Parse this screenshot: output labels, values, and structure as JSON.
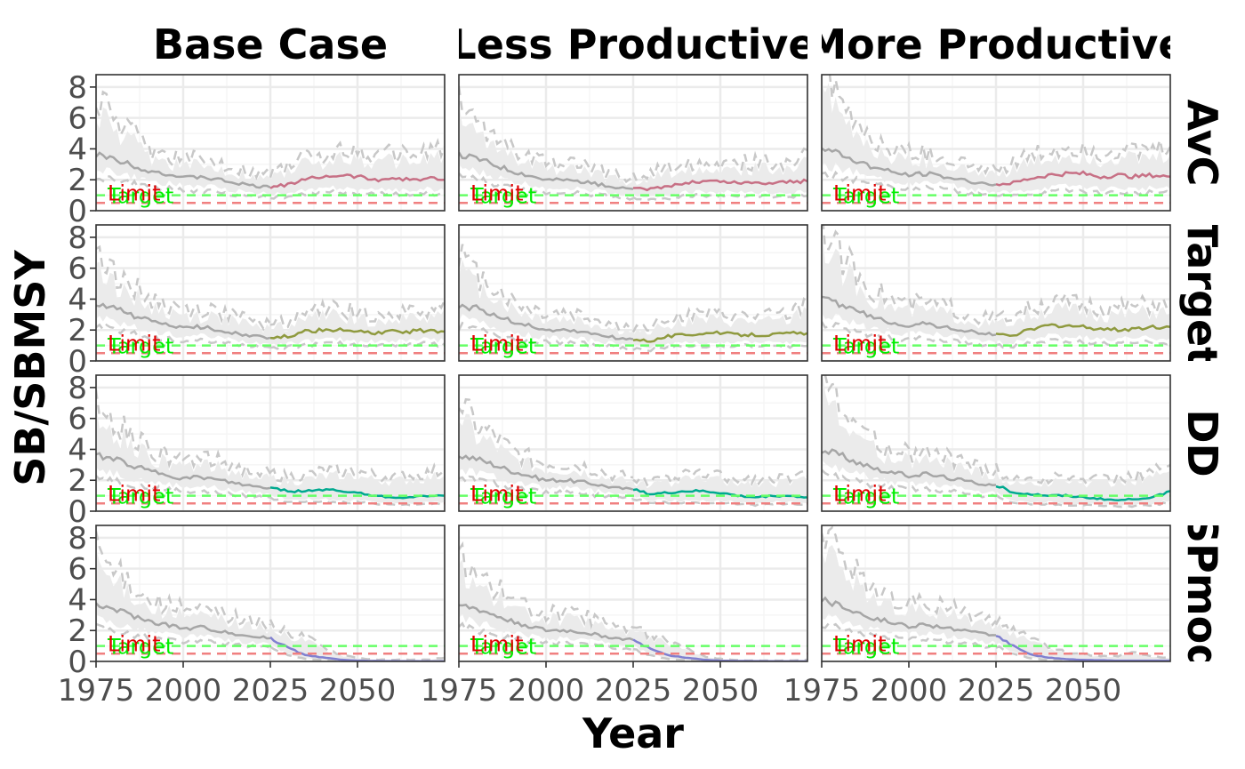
{
  "chart_data": {
    "type": "line",
    "xlabel": "Year",
    "ylabel": "SB/SBMSY",
    "xlim": [
      1975,
      2075
    ],
    "ylim": [
      0,
      8.8
    ],
    "x_ticks": [
      1975,
      2000,
      2025,
      2050
    ],
    "x_tick_labels": [
      "1975",
      "2000",
      "2025",
      "2050"
    ],
    "y_ticks": [
      0,
      2,
      4,
      6,
      8
    ],
    "y_tick_labels": [
      "0",
      "2",
      "4",
      "6",
      "8"
    ],
    "grid": true,
    "facet_columns": [
      "Base Case",
      "Less Productive",
      "More Productive"
    ],
    "facet_rows": [
      "AvC",
      "Target",
      "DD",
      "SPmod"
    ],
    "reference_lines": [
      {
        "label": "Target",
        "y": 1.0,
        "color": "#66ff66",
        "dash": true
      },
      {
        "label": "Limit",
        "y": 0.5,
        "color": "#f08080",
        "dash": true
      }
    ],
    "historical": {
      "color": "#a6a6a6",
      "band_color": "#ebebeb",
      "band_edge_color": "#c8c8c8",
      "x": [
        1975,
        1980,
        1985,
        1990,
        1995,
        2000,
        2005,
        2010,
        2015,
        2020,
        2025
      ],
      "median": [
        [
          3.6,
          3.4,
          3.0,
          2.6,
          2.4,
          2.1,
          2.2,
          2.0,
          1.8,
          1.6,
          1.5
        ],
        [
          3.6,
          3.4,
          3.0,
          2.6,
          2.3,
          2.0,
          2.0,
          1.9,
          1.7,
          1.5,
          1.4
        ],
        [
          4.0,
          3.7,
          3.2,
          2.8,
          2.5,
          2.3,
          2.4,
          2.2,
          2.0,
          1.8,
          1.7
        ]
      ],
      "lower": [
        [
          2.8,
          2.5,
          2.2,
          1.9,
          1.8,
          1.6,
          1.6,
          1.5,
          1.3,
          1.2,
          1.1
        ],
        [
          2.8,
          2.5,
          2.2,
          1.9,
          1.7,
          1.5,
          1.5,
          1.4,
          1.3,
          1.1,
          1.0
        ],
        [
          3.0,
          2.7,
          2.4,
          2.1,
          1.9,
          1.8,
          1.8,
          1.7,
          1.5,
          1.3,
          1.2
        ]
      ],
      "upper": [
        [
          6.5,
          5.0,
          4.5,
          3.5,
          3.2,
          2.9,
          2.9,
          2.8,
          2.5,
          2.2,
          2.1
        ],
        [
          6.2,
          4.8,
          4.3,
          3.4,
          3.0,
          2.7,
          2.7,
          2.6,
          2.3,
          2.0,
          1.9
        ],
        [
          8.0,
          6.0,
          5.0,
          4.0,
          3.5,
          3.2,
          3.3,
          3.1,
          2.8,
          2.5,
          2.3
        ]
      ]
    },
    "projection": {
      "x": [
        2025,
        2030,
        2035,
        2040,
        2045,
        2050,
        2055,
        2060,
        2065,
        2070,
        2075
      ],
      "series": [
        {
          "color": "#c77085",
          "median": [
            [
              1.5,
              1.7,
              2.0,
              2.2,
              2.3,
              2.2,
              2.0,
              2.1,
              2.0,
              2.1,
              2.0
            ],
            [
              1.4,
              1.4,
              1.6,
              1.8,
              1.9,
              1.9,
              1.8,
              1.8,
              1.8,
              1.9,
              1.9
            ],
            [
              1.7,
              1.8,
              2.1,
              2.3,
              2.4,
              2.4,
              2.2,
              2.3,
              2.2,
              2.3,
              2.2
            ]
          ],
          "lower": [
            [
              1.1,
              1.1,
              1.3,
              1.4,
              1.5,
              1.4,
              1.3,
              1.4,
              1.3,
              1.4,
              1.3
            ],
            [
              1.0,
              0.9,
              1.0,
              1.2,
              1.2,
              1.2,
              1.2,
              1.2,
              1.2,
              1.2,
              1.2
            ],
            [
              1.2,
              1.2,
              1.4,
              1.5,
              1.6,
              1.6,
              1.4,
              1.5,
              1.4,
              1.5,
              1.4
            ]
          ],
          "upper": [
            [
              2.1,
              2.6,
              3.0,
              3.2,
              3.4,
              3.3,
              3.0,
              3.2,
              3.1,
              3.3,
              3.6
            ],
            [
              1.9,
              2.1,
              2.5,
              2.7,
              2.8,
              2.8,
              2.7,
              2.7,
              2.7,
              2.8,
              3.4
            ],
            [
              2.3,
              2.7,
              3.1,
              3.4,
              3.6,
              3.6,
              3.3,
              3.5,
              3.3,
              3.4,
              3.6
            ]
          ]
        },
        {
          "color": "#8f9a3f",
          "median": [
            [
              1.5,
              1.6,
              1.9,
              2.0,
              2.0,
              1.9,
              1.8,
              1.9,
              1.9,
              2.0,
              1.9
            ],
            [
              1.4,
              1.3,
              1.6,
              1.7,
              1.8,
              1.8,
              1.7,
              1.7,
              1.7,
              1.8,
              1.8
            ],
            [
              1.7,
              1.7,
              2.0,
              2.3,
              2.3,
              2.2,
              2.1,
              2.0,
              2.1,
              2.2,
              2.2
            ]
          ],
          "lower": [
            [
              1.1,
              1.1,
              1.3,
              1.4,
              1.4,
              1.3,
              1.3,
              1.3,
              1.3,
              1.4,
              1.3
            ],
            [
              1.0,
              0.9,
              1.1,
              1.2,
              1.2,
              1.2,
              1.2,
              1.2,
              1.2,
              1.2,
              1.2
            ],
            [
              1.2,
              1.2,
              1.4,
              1.6,
              1.6,
              1.5,
              1.4,
              1.4,
              1.5,
              1.5,
              1.5
            ]
          ],
          "upper": [
            [
              2.1,
              2.3,
              2.7,
              2.9,
              2.9,
              2.8,
              2.6,
              2.7,
              2.7,
              2.9,
              3.4
            ],
            [
              1.9,
              2.0,
              2.4,
              2.6,
              2.6,
              2.6,
              2.5,
              2.5,
              2.5,
              2.6,
              3.3
            ],
            [
              2.3,
              2.6,
              3.0,
              3.3,
              3.3,
              3.2,
              3.0,
              3.0,
              3.1,
              3.2,
              3.1
            ]
          ]
        },
        {
          "color": "#00a98f",
          "median": [
            [
              1.5,
              1.3,
              1.3,
              1.4,
              1.3,
              1.2,
              1.0,
              0.9,
              0.9,
              1.0,
              1.0
            ],
            [
              1.4,
              1.1,
              1.2,
              1.3,
              1.3,
              1.2,
              1.0,
              0.9,
              1.0,
              1.0,
              0.9
            ],
            [
              1.7,
              1.2,
              1.1,
              1.0,
              1.0,
              0.9,
              0.8,
              0.7,
              0.8,
              0.9,
              1.3
            ]
          ],
          "lower": [
            [
              1.1,
              0.8,
              0.8,
              0.8,
              0.7,
              0.7,
              0.6,
              0.5,
              0.5,
              0.6,
              0.6
            ],
            [
              1.0,
              0.7,
              0.7,
              0.7,
              0.7,
              0.7,
              0.6,
              0.5,
              0.6,
              0.6,
              0.5
            ],
            [
              1.2,
              0.7,
              0.6,
              0.6,
              0.5,
              0.5,
              0.4,
              0.4,
              0.4,
              0.5,
              0.7
            ]
          ],
          "upper": [
            [
              2.1,
              1.9,
              2.0,
              2.2,
              2.3,
              2.2,
              2.0,
              1.9,
              2.0,
              2.1,
              2.3
            ],
            [
              1.9,
              1.7,
              1.8,
              2.0,
              2.1,
              2.0,
              1.8,
              1.8,
              1.8,
              1.9,
              2.0
            ],
            [
              2.3,
              1.8,
              1.8,
              1.8,
              1.9,
              1.8,
              1.8,
              1.9,
              2.0,
              2.3,
              2.6
            ]
          ]
        },
        {
          "color": "#8080d0",
          "median": [
            [
              1.5,
              0.9,
              0.4,
              0.25,
              0.12,
              0.05,
              0.03,
              0.02,
              0.01,
              0.01,
              0.01
            ],
            [
              1.4,
              0.8,
              0.4,
              0.25,
              0.12,
              0.05,
              0.03,
              0.02,
              0.01,
              0.01,
              0.01
            ],
            [
              1.7,
              1.0,
              0.45,
              0.25,
              0.15,
              0.1,
              0.08,
              0.05,
              0.05,
              0.05,
              0.05
            ]
          ],
          "lower": [
            [
              1.1,
              0.5,
              0.2,
              0.1,
              0.05,
              0.02,
              0.01,
              0.0,
              0.0,
              0.0,
              0.0
            ],
            [
              1.0,
              0.5,
              0.2,
              0.1,
              0.05,
              0.02,
              0.01,
              0.0,
              0.0,
              0.0,
              0.0
            ],
            [
              1.2,
              0.6,
              0.25,
              0.1,
              0.05,
              0.03,
              0.02,
              0.01,
              0.0,
              0.0,
              0.0
            ]
          ],
          "upper": [
            [
              2.1,
              1.6,
              1.4,
              0.8,
              0.4,
              0.2,
              0.1,
              0.1,
              0.1,
              0.1,
              0.2
            ],
            [
              1.9,
              1.5,
              1.2,
              0.7,
              0.3,
              0.15,
              0.08,
              0.05,
              0.05,
              0.05,
              0.1
            ],
            [
              2.3,
              1.8,
              1.5,
              0.9,
              0.5,
              0.4,
              0.3,
              0.3,
              0.5,
              0.3,
              0.2
            ]
          ]
        }
      ]
    }
  },
  "colors": {
    "strip_text": "#d65a2a",
    "panel_border": "#333333",
    "grid_major": "#ebebeb",
    "grid_minor": "#f5f5f5",
    "target_label": "#00ee00",
    "limit_label": "#e00000"
  }
}
